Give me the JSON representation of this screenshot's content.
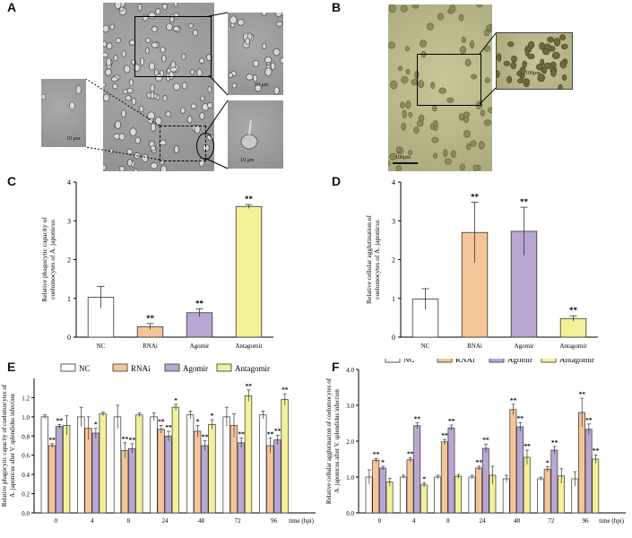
{
  "colors": {
    "NC": "#ffffff",
    "RNAi": "#f5c59a",
    "Agomir": "#b9a7d3",
    "Antagomir": "#f3f09a",
    "stroke": "#333333"
  },
  "panels": {
    "A": {
      "letter": "A",
      "scale_labels": [
        "10 μm",
        "10 μm",
        "10 μm"
      ]
    },
    "B": {
      "letter": "B",
      "scale_labels": [
        "100μm",
        "100μm"
      ]
    }
  },
  "chart_data": [
    {
      "id": "C",
      "letter": "C",
      "type": "bar",
      "categories": [
        "NC",
        "RNAi",
        "Agomir",
        "Antagomir"
      ],
      "values": [
        1.03,
        0.27,
        0.63,
        3.37
      ],
      "errors": [
        0.28,
        0.08,
        0.1,
        0.05
      ],
      "significance": [
        "",
        "**",
        "**",
        "**"
      ],
      "ylabel": "Relative phagocytic capacity of coelomocytes of A. japonicus",
      "ylim": [
        0,
        4
      ],
      "yticks": [
        "0",
        "1",
        "2",
        "3",
        "4"
      ]
    },
    {
      "id": "D",
      "letter": "D",
      "type": "bar",
      "categories": [
        "NC",
        "RNAi",
        "Agomir",
        "Antagomir"
      ],
      "values": [
        0.98,
        2.7,
        2.73,
        0.48
      ],
      "errors": [
        0.27,
        0.78,
        0.62,
        0.07
      ],
      "significance": [
        "",
        "**",
        "**",
        "**"
      ],
      "ylabel": "Relative cellular agglutination of coelomocytes of A. japonicus",
      "ylim": [
        0,
        4
      ],
      "yticks": [
        "0",
        "1",
        "2",
        "3",
        "4"
      ]
    },
    {
      "id": "E",
      "letter": "E",
      "type": "bar",
      "categories": [
        "0",
        "4",
        "8",
        "24",
        "48",
        "72",
        "96"
      ],
      "xlabel": "time (hpi)",
      "ylabel": "Relative phagocytic capacity of coelomocytes of A. japonicus after V. splendidus infection",
      "ylim": [
        0,
        1.4
      ],
      "yticks": [
        "0.0",
        "0.2",
        "0.4",
        "0.6",
        "0.8",
        "1.0",
        "1.2"
      ],
      "legend": [
        "NC",
        "RNAi",
        "Agomir",
        "Antagomir"
      ],
      "legend_position": "top",
      "series": [
        {
          "name": "NC",
          "values": [
            1.0,
            1.0,
            1.0,
            1.0,
            1.02,
            1.0,
            1.02
          ],
          "errors": [
            0.02,
            0.1,
            0.12,
            0.04,
            0.04,
            0.1,
            0.04
          ],
          "sig": [
            "",
            "",
            "",
            "",
            "",
            "",
            ""
          ]
        },
        {
          "name": "RNAi",
          "values": [
            0.7,
            0.88,
            0.65,
            0.87,
            0.85,
            0.91,
            0.7
          ],
          "errors": [
            0.02,
            0.12,
            0.08,
            0.04,
            0.06,
            0.12,
            0.08
          ],
          "sig": [
            "**",
            "",
            "**",
            "**",
            "*",
            "",
            "**"
          ]
        },
        {
          "name": "Agomir",
          "values": [
            0.9,
            0.83,
            0.67,
            0.8,
            0.7,
            0.73,
            0.76
          ],
          "errors": [
            0.02,
            0.05,
            0.05,
            0.05,
            0.05,
            0.05,
            0.05
          ],
          "sig": [
            "**",
            "*",
            "**",
            "**",
            "**",
            "**",
            "**"
          ]
        },
        {
          "name": "Antagomir",
          "values": [
            0.91,
            1.03,
            1.02,
            1.1,
            0.92,
            1.22,
            1.18
          ],
          "errors": [
            0.1,
            0.02,
            0.02,
            0.03,
            0.05,
            0.06,
            0.06
          ],
          "sig": [
            "",
            "",
            "",
            "*",
            "*",
            "**",
            "**"
          ]
        }
      ]
    },
    {
      "id": "F",
      "letter": "F",
      "type": "bar",
      "categories": [
        "0",
        "4",
        "8",
        "24",
        "48",
        "72",
        "96"
      ],
      "xlabel": "time (hpi)",
      "ylabel": "Relative cellular agglutination of coelomocytes of A. japonicus after V. splendidus infection",
      "ylim": [
        0,
        4.0
      ],
      "yticks": [
        "0.0",
        "1.0",
        "2.0",
        "3.0",
        "4.0"
      ],
      "legend": [
        "NC",
        "RNAi",
        "Agomir",
        "Antagomir"
      ],
      "legend_position": "top",
      "series": [
        {
          "name": "NC",
          "values": [
            1.0,
            1.0,
            1.0,
            1.0,
            0.95,
            0.95,
            0.95
          ],
          "errors": [
            0.2,
            0.05,
            0.05,
            0.05,
            0.1,
            0.05,
            0.2
          ],
          "sig": [
            "",
            "",
            "",
            "",
            "",
            "",
            ""
          ]
        },
        {
          "name": "RNAi",
          "values": [
            1.47,
            1.48,
            1.98,
            1.25,
            2.88,
            1.22,
            2.8
          ],
          "errors": [
            0.05,
            0.06,
            0.07,
            0.05,
            0.15,
            0.07,
            0.4
          ],
          "sig": [
            "**",
            "**",
            "**",
            "**",
            "**",
            "*",
            "**"
          ]
        },
        {
          "name": "Agomir",
          "values": [
            1.25,
            2.43,
            2.37,
            1.8,
            2.4,
            1.75,
            2.33
          ],
          "errors": [
            0.05,
            0.08,
            0.08,
            0.12,
            0.12,
            0.1,
            0.15
          ],
          "sig": [
            "*",
            "**",
            "**",
            "**",
            "**",
            "**",
            "**"
          ]
        },
        {
          "name": "Antagomir",
          "values": [
            0.86,
            0.78,
            1.02,
            1.05,
            1.55,
            1.03,
            1.5
          ],
          "errors": [
            0.1,
            0.06,
            0.05,
            0.25,
            0.2,
            0.2,
            0.12
          ],
          "sig": [
            "",
            "*",
            "",
            "",
            "**",
            "",
            "**"
          ]
        }
      ]
    }
  ]
}
